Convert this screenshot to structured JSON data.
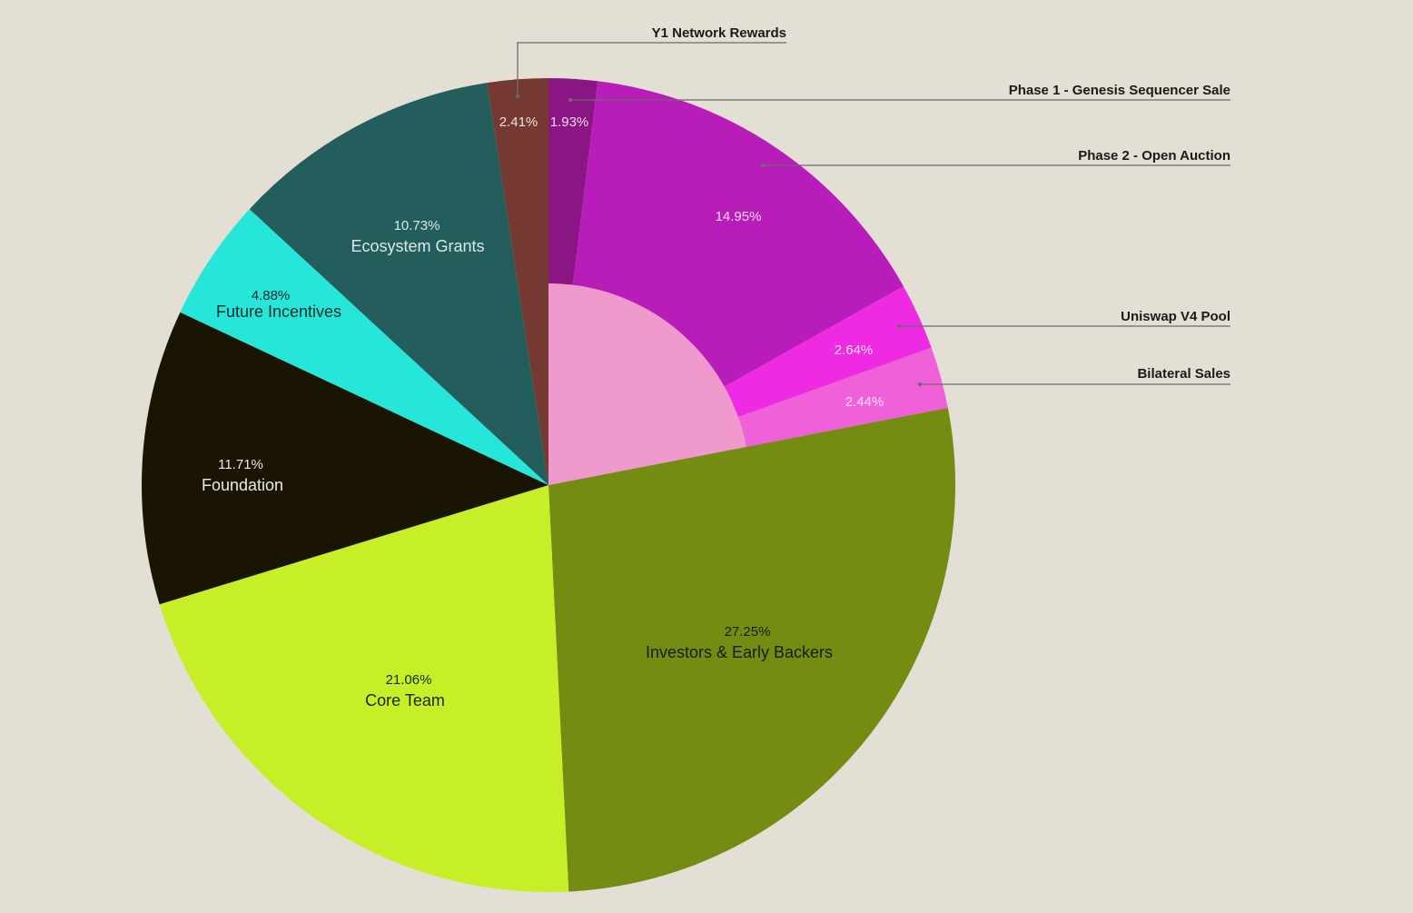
{
  "colors": {
    "background": "#e3dfd4",
    "callout_text": "#1a1a1a",
    "leader_line": "#6b6b6b"
  },
  "chart_data": {
    "type": "pie",
    "title": "",
    "start_angle_deg": 0,
    "direction": "clockwise",
    "slices": [
      {
        "name": "Phase 1 - Genesis Sequencer Sale",
        "value": 1.93,
        "label": "1.93%",
        "color": "#8a1584",
        "text_color": "#f0d8ee",
        "callout": true
      },
      {
        "name": "Phase 2 - Open Auction",
        "value": 14.95,
        "label": "14.95%",
        "color": "#b81cb9",
        "text_color": "#f3dcf2",
        "callout": true
      },
      {
        "name": "Uniswap V4 Pool",
        "value": 2.64,
        "label": "2.64%",
        "color": "#ee2ae3",
        "text_color": "#fbe0f8",
        "callout": true
      },
      {
        "name": "Bilateral Sales",
        "value": 2.44,
        "label": "2.44%",
        "color": "#ef60d9",
        "text_color": "#fce3f7",
        "callout": true
      },
      {
        "name": "Investors & Early Backers",
        "value": 27.25,
        "label": "27.25%",
        "color": "#758c13",
        "text_color": "#1a1a0a",
        "callout": false
      },
      {
        "name": "Core Team",
        "value": 21.06,
        "label": "21.06%",
        "color": "#c6ef28",
        "text_color": "#1d2408",
        "callout": false
      },
      {
        "name": "Foundation",
        "value": 11.71,
        "label": "11.71%",
        "color": "#1a1503",
        "text_color": "#ecebe3",
        "callout": false
      },
      {
        "name": "Future Incentives",
        "value": 4.88,
        "label": "4.88%",
        "color": "#25e6d8",
        "text_color": "#0d2b29",
        "callout": false
      },
      {
        "name": "Ecosystem Grants",
        "value": 10.73,
        "label": "10.73%",
        "color": "#245e5c",
        "text_color": "#dbe8e6",
        "callout": false
      },
      {
        "name": "Y1 Network Rewards",
        "value": 2.41,
        "label": "2.41%",
        "color": "#743931",
        "text_color": "#f1dfdb",
        "callout": true
      }
    ],
    "inner_group": {
      "covers_slices": [
        "Phase 1 - Genesis Sequencer Sale",
        "Phase 2 - Open Auction",
        "Uniswap V4 Pool",
        "Bilateral Sales"
      ],
      "color": "#ef99cc"
    }
  }
}
